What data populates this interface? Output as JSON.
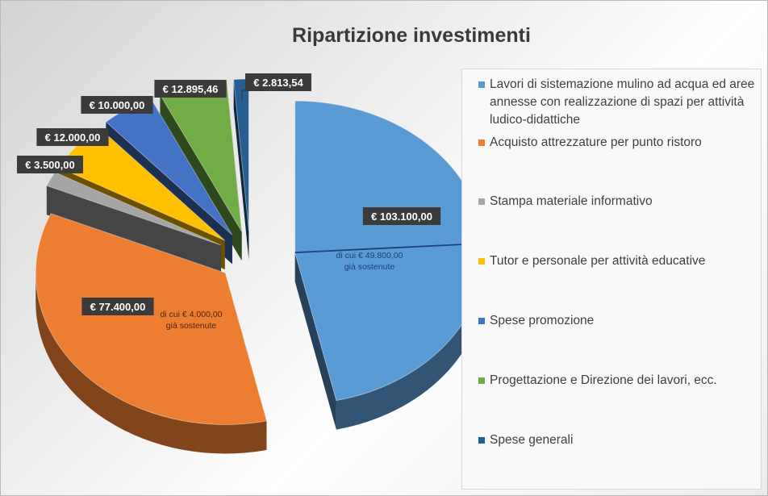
{
  "chart_data": {
    "type": "pie",
    "title": "Ripartizione investimenti",
    "legend_position": "right",
    "slices": [
      {
        "name": "Lavori di sistemazione mulino ad acqua ed aree annesse con realizzazione di spazi per attività ludico-didattiche",
        "value": 103100.0,
        "label": "€ 103.100,00",
        "note": "di cui € 49.800,00 già sostenute",
        "color": "#5b9bd5"
      },
      {
        "name": "Acquisto attrezzature per punto ristoro",
        "value": 77400.0,
        "label": "€ 77.400,00",
        "note": "di cui € 4.000,00 già sostenute",
        "color": "#ed7d31"
      },
      {
        "name": "Stampa materiale informativo",
        "value": 3500.0,
        "label": "€ 3.500,00",
        "color": "#a5a5a5"
      },
      {
        "name": "Tutor e personale per attività educative",
        "value": 12000.0,
        "label": "€ 12.000,00",
        "color": "#ffc000"
      },
      {
        "name": "Spese promozione",
        "value": 10000.0,
        "label": "€ 10.000,00",
        "color": "#4472c4"
      },
      {
        "name": "Progettazione e Direzione dei lavori, ecc.",
        "value": 12895.46,
        "label": "€ 12.895,46",
        "color": "#70ad47"
      },
      {
        "name": "Spese generali",
        "value": 2813.54,
        "label": "€ 2.813,54",
        "color": "#255e91"
      }
    ],
    "sub_values": [
      {
        "slice": "Lavori di sistemazione mulino ad acqua ed aree annesse con realizzazione di spazi per attività ludico-didattiche",
        "value": 49800.0
      }
    ]
  }
}
